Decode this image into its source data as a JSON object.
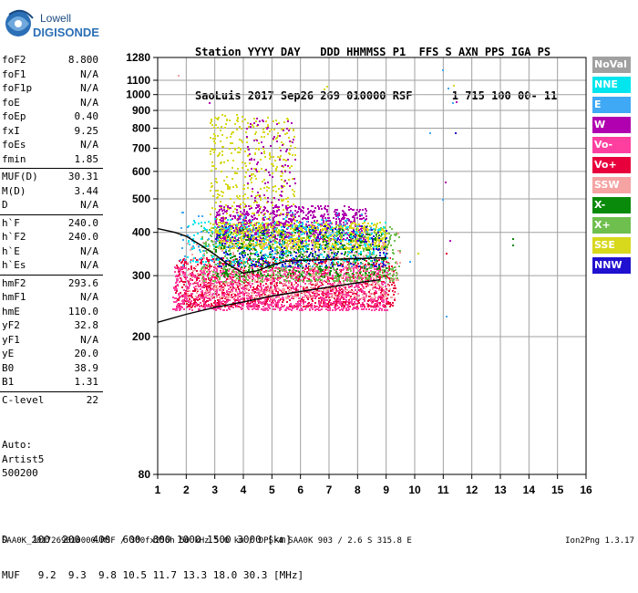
{
  "logo": {
    "line1": "Lowell",
    "line2": "DIGISONDE"
  },
  "header": {
    "line1": "Station YYYY DAY   DDD HHMMSS P1  FFS S AXN PPS IGA PS",
    "line2": "SaoLuis 2017 Sep26 269 010000 RSF      1 715 100 00- 11"
  },
  "params": {
    "g1": [
      {
        "name": "foF2",
        "value": "8.800"
      },
      {
        "name": "foF1",
        "value": "N/A"
      },
      {
        "name": "foF1p",
        "value": "N/A"
      },
      {
        "name": "foE",
        "value": "N/A"
      },
      {
        "name": "foEp",
        "value": "0.40"
      },
      {
        "name": "fxI",
        "value": "9.25"
      },
      {
        "name": "foEs",
        "value": "N/A"
      },
      {
        "name": "fmin",
        "value": "1.85"
      }
    ],
    "g2": [
      {
        "name": "MUF(D)",
        "value": "30.31"
      },
      {
        "name": "M(D)",
        "value": "3.44"
      },
      {
        "name": "D",
        "value": "N/A"
      }
    ],
    "g3": [
      {
        "name": "h`F",
        "value": "240.0"
      },
      {
        "name": "h`F2",
        "value": "240.0"
      },
      {
        "name": "h`E",
        "value": "N/A"
      },
      {
        "name": "h`Es",
        "value": "N/A"
      }
    ],
    "g4": [
      {
        "name": "hmF2",
        "value": "293.6"
      },
      {
        "name": "hmF1",
        "value": "N/A"
      },
      {
        "name": "hmE",
        "value": "110.0"
      },
      {
        "name": "yF2",
        "value": "32.8"
      },
      {
        "name": "yF1",
        "value": "N/A"
      },
      {
        "name": "yE",
        "value": "20.0"
      },
      {
        "name": "B0",
        "value": "38.9"
      },
      {
        "name": "B1",
        "value": "1.31"
      }
    ],
    "g5": [
      {
        "name": "C-level",
        "value": "22"
      }
    ]
  },
  "auto": {
    "label": "Auto:",
    "artist": "Artist5",
    "version": "500200"
  },
  "legend": [
    {
      "label": "NoVal",
      "color": "#a0a0a0"
    },
    {
      "label": "NNE",
      "color": "#00e5ee"
    },
    {
      "label": "E",
      "color": "#3fa9f5"
    },
    {
      "label": "W",
      "color": "#b000b0"
    },
    {
      "label": "Vo-",
      "color": "#ff3fa0"
    },
    {
      "label": "Vo+",
      "color": "#e8003c"
    },
    {
      "label": "SSW",
      "color": "#f5a3a3"
    },
    {
      "label": "X-",
      "color": "#0a8a0a"
    },
    {
      "label": "X+",
      "color": "#6fbf4f"
    },
    {
      "label": "SSE",
      "color": "#d8d81c"
    },
    {
      "label": "NNW",
      "color": "#2010d0"
    }
  ],
  "dtable": {
    "line1": "D    100  200  400  600  800 1000 1500 3000 [km]",
    "line2": "MUF   9.2  9.3  9.8 10.5 11.7 13.3 18.0 30.3 [MHz]"
  },
  "footer": {
    "text": "SAA0K_2017269010000.RSF / 300fx256h 50 kHz 5.0 km / DPS-4 SAA0K 903 / 2.6 S 315.8 E",
    "version": "Ion2Png 1.3.17"
  },
  "chart_data": {
    "type": "scatter",
    "xlim": [
      1,
      16
    ],
    "ylim": [
      80,
      1280
    ],
    "y_scale": "log",
    "x_ticks": [
      "1",
      "2",
      "3",
      "4",
      "5",
      "6",
      "7",
      "8",
      "9",
      "10",
      "11",
      "12",
      "13",
      "14",
      "15",
      "16"
    ],
    "y_ticks": [
      "80",
      "200",
      "300",
      "400",
      "500",
      "600",
      "700",
      "800",
      "900",
      "1000",
      "1100",
      "1280"
    ],
    "grid": true,
    "echo_regions": [
      {
        "mode": "SSE",
        "x": [
          2.8,
          5.8
        ],
        "y": [
          400,
          880
        ],
        "density": 0.55
      },
      {
        "mode": "W",
        "x": [
          3.0,
          8.3
        ],
        "y": [
          380,
          480
        ],
        "density": 0.5
      },
      {
        "mode": "SSE",
        "x": [
          3.0,
          9.0
        ],
        "y": [
          360,
          430
        ],
        "density": 0.5
      },
      {
        "mode": "Vo+",
        "x": [
          1.6,
          9.3
        ],
        "y": [
          245,
          340
        ],
        "density": 0.6
      },
      {
        "mode": "Vo-",
        "x": [
          1.5,
          9.0
        ],
        "y": [
          240,
          320
        ],
        "density": 0.55
      },
      {
        "mode": "SSW",
        "x": [
          2.0,
          9.5
        ],
        "y": [
          260,
          380
        ],
        "density": 0.3
      },
      {
        "mode": "X+",
        "x": [
          2.5,
          9.5
        ],
        "y": [
          290,
          420
        ],
        "density": 0.3
      },
      {
        "mode": "X-",
        "x": [
          3.0,
          9.0
        ],
        "y": [
          300,
          410
        ],
        "density": 0.2
      },
      {
        "mode": "NNW",
        "x": [
          3.0,
          9.0
        ],
        "y": [
          320,
          420
        ],
        "density": 0.15
      },
      {
        "mode": "NNE",
        "x": [
          2.0,
          9.0
        ],
        "y": [
          330,
          440
        ],
        "density": 0.12
      },
      {
        "mode": "E",
        "x": [
          1.7,
          8.5
        ],
        "y": [
          320,
          460
        ],
        "density": 0.08
      },
      {
        "mode": "W",
        "x": [
          4.0,
          5.8
        ],
        "y": [
          420,
          860
        ],
        "density": 0.25
      }
    ],
    "sparse_points": [
      {
        "mode": "E",
        "x": 10.95,
        "y": 1180
      },
      {
        "mode": "E",
        "x": 11.3,
        "y": 950
      },
      {
        "mode": "W",
        "x": 11.45,
        "y": 955
      },
      {
        "mode": "SSE",
        "x": 11.35,
        "y": 1070
      },
      {
        "mode": "E",
        "x": 11.15,
        "y": 1050
      },
      {
        "mode": "NNW",
        "x": 11.4,
        "y": 780
      },
      {
        "mode": "E",
        "x": 10.5,
        "y": 780
      },
      {
        "mode": "W",
        "x": 11.05,
        "y": 560
      },
      {
        "mode": "E",
        "x": 10.95,
        "y": 500
      },
      {
        "mode": "E",
        "x": 11.1,
        "y": 230
      },
      {
        "mode": "X-",
        "x": 13.4,
        "y": 370
      },
      {
        "mode": "X-",
        "x": 13.4,
        "y": 385
      },
      {
        "mode": "Vo+",
        "x": 11.1,
        "y": 350
      },
      {
        "mode": "W",
        "x": 11.2,
        "y": 380
      },
      {
        "mode": "SSE",
        "x": 10.1,
        "y": 350
      },
      {
        "mode": "E",
        "x": 9.8,
        "y": 330
      },
      {
        "mode": "SSW",
        "x": 1.7,
        "y": 1140
      },
      {
        "mode": "W",
        "x": 2.8,
        "y": 950
      },
      {
        "mode": "SSE",
        "x": 6.8,
        "y": 1040
      },
      {
        "mode": "SSE",
        "x": 6.9,
        "y": 1060
      },
      {
        "mode": "SSW",
        "x": 9.4,
        "y": 400
      }
    ],
    "profile_lines": [
      {
        "name": "lower",
        "x": [
          1.0,
          2.0,
          3.0,
          4.0,
          5.0,
          6.0,
          7.0,
          8.0,
          8.8
        ],
        "y": [
          220,
          232,
          243,
          252,
          262,
          270,
          278,
          286,
          292
        ]
      },
      {
        "name": "upper",
        "x": [
          1.0,
          1.6,
          2.0,
          2.5,
          3.0,
          3.5,
          4.0,
          4.5,
          5.0,
          5.5,
          6.0,
          7.0,
          8.0,
          9.0
        ],
        "y": [
          410,
          400,
          390,
          368,
          345,
          322,
          305,
          310,
          322,
          330,
          332,
          334,
          336,
          338
        ]
      }
    ]
  }
}
